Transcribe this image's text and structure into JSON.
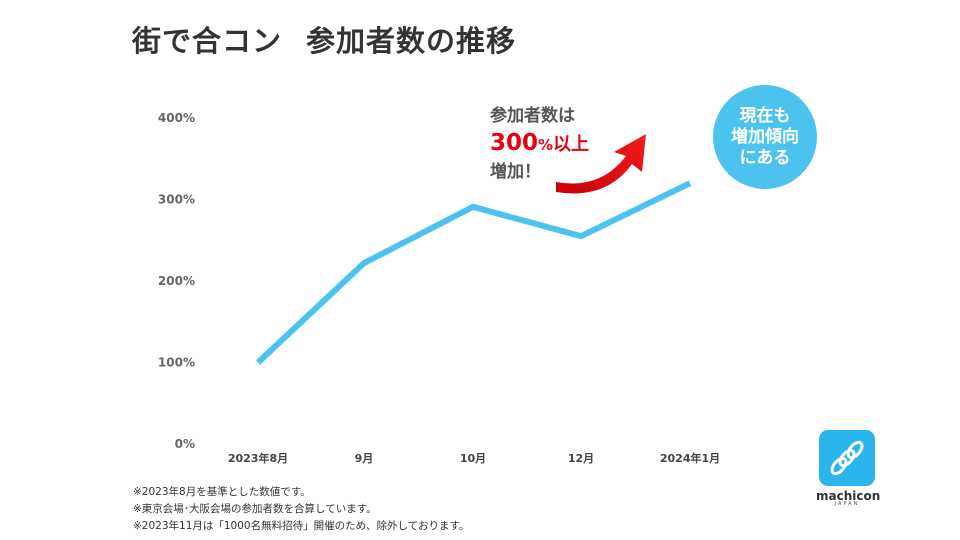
{
  "title": {
    "part1": "街で合コン",
    "part2": "参加者数の推移"
  },
  "chart_data": {
    "type": "line",
    "categories": [
      "2023年8月",
      "9月",
      "10月",
      "12月",
      "2024年1月"
    ],
    "series": [
      {
        "values": [
          100,
          222,
          291,
          255,
          320
        ],
        "color": "#4cc3ee"
      }
    ],
    "ylim": [
      0,
      400
    ],
    "yticks": [
      "0%",
      "100%",
      "200%",
      "300%",
      "400%"
    ],
    "grid": false
  },
  "callout": {
    "line1": "参加者数は",
    "number": "300",
    "unit": "%",
    "suffix": "以上",
    "line3": "増加！"
  },
  "bubble": {
    "text": "現在も\n増加傾向\nにある"
  },
  "notes": [
    "※2023年8月を基準とした数値です。",
    "※東京会場･大阪会場の参加者数を合算しています。",
    "※2023年11月は「1000名無料招待」開催のため、除外しております。"
  ],
  "logo": {
    "name": "machicon",
    "sub": "JAPAN"
  },
  "colors": {
    "line": "#4cc3ee",
    "highlight": "#e60012",
    "bubble": "#4cc3ee",
    "logo": "#2bb5ef"
  }
}
